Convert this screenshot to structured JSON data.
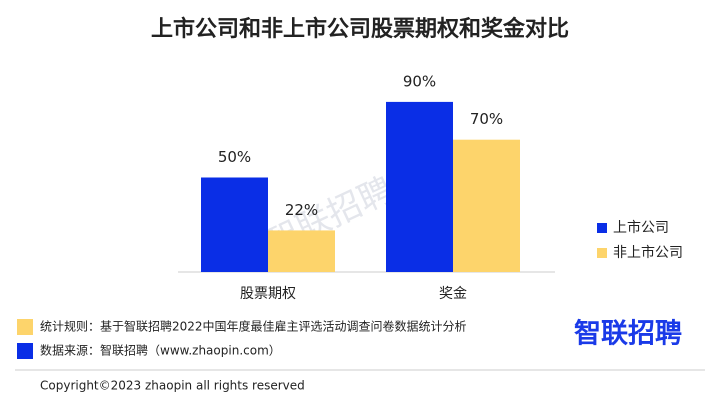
{
  "chart_data": {
    "type": "bar",
    "title": "上市公司和非上市公司股票期权和奖金对比",
    "categories": [
      "股票期权",
      "奖金"
    ],
    "series": [
      {
        "name": "上市公司",
        "color": "#0a2ee6",
        "values": [
          50,
          90
        ],
        "value_labels": [
          "50%",
          "90%"
        ]
      },
      {
        "name": "非上市公司",
        "color": "#fdd46b",
        "values": [
          22,
          70
        ],
        "value_labels": [
          "22%",
          "70%"
        ]
      }
    ],
    "ylim": [
      0,
      100
    ],
    "grid": false,
    "legend": "right"
  },
  "watermark": "智联招聘",
  "notes": [
    {
      "color": "#fdd46b",
      "text": "统计规则：基于智联招聘2022中国年度最佳雇主评选活动调查问卷数据统计分析"
    },
    {
      "color": "#0a2ee6",
      "text": "数据来源：智联招聘（www.zhaopin.com）"
    }
  ],
  "logo": "智联招聘",
  "copyright": "Copyright©2023 zhaopin all rights reserved"
}
